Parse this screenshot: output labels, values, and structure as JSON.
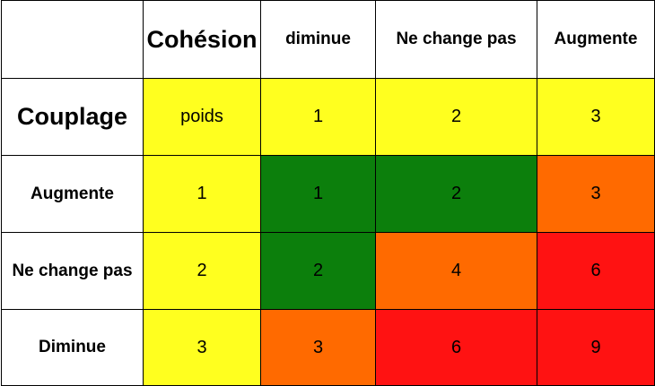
{
  "table": {
    "corner": "",
    "col_axis_label": "Cohésion",
    "col_headers": [
      "diminue",
      "Ne change pas",
      "Augmente"
    ],
    "weight_row": {
      "label": "Couplage",
      "weight_label": "poids",
      "values": [
        "1",
        "2",
        "3"
      ]
    },
    "rows": [
      {
        "label": "Augmente",
        "weight": "1",
        "values": [
          "1",
          "2",
          "3"
        ]
      },
      {
        "label": "Ne change pas",
        "weight": "2",
        "values": [
          "2",
          "4",
          "6"
        ]
      },
      {
        "label": "Diminue",
        "weight": "3",
        "values": [
          "3",
          "6",
          "9"
        ]
      }
    ]
  },
  "colors": {
    "weight_yellow": "#ffff1f",
    "good_green": "#0c7f0c",
    "medium_orange": "#ff6a00",
    "bad_red": "#ff1212",
    "border": "#000000",
    "header_bg": "#ffffff"
  }
}
